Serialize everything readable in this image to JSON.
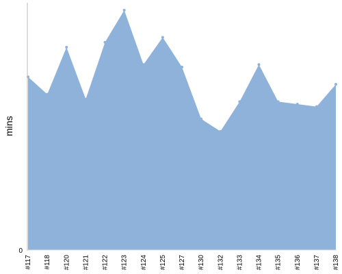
{
  "chart_data": {
    "type": "area",
    "title": "",
    "xlabel": "",
    "ylabel": "mins",
    "categories": [
      "#117",
      "#118",
      "#120",
      "#121",
      "#122",
      "#123",
      "#124",
      "#125",
      "#127",
      "#130",
      "#132",
      "#133",
      "#134",
      "#135",
      "#136",
      "#137",
      "#138"
    ],
    "series": [
      {
        "values": [
          70,
          63,
          82,
          61,
          84,
          97,
          75,
          86,
          74,
          53,
          48,
          60,
          75,
          60,
          59,
          58,
          67
        ]
      }
    ],
    "ylim": [
      0,
      100
    ],
    "yticks": [
      "0"
    ],
    "grid": false,
    "colors": {
      "fill": "#8fb2da",
      "axis": "#bbbbbb"
    }
  }
}
